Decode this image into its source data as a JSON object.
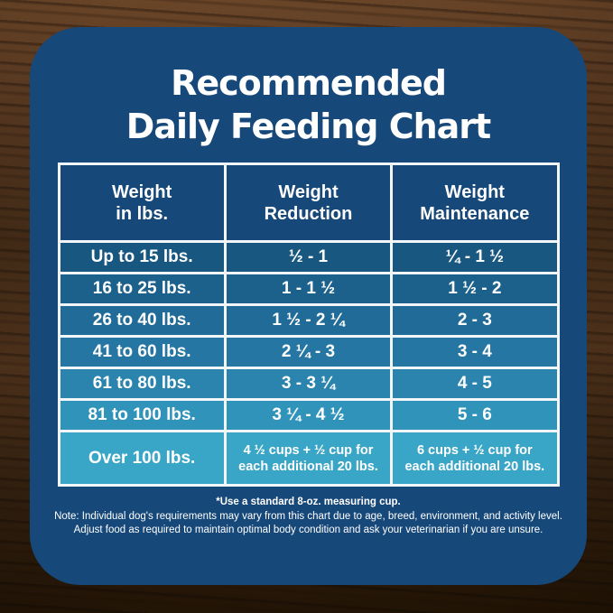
{
  "header": {
    "title_line1": "Recommended",
    "title_line2": "Daily Feeding Chart"
  },
  "table": {
    "columns": [
      {
        "line1": "Weight",
        "line2": "in lbs."
      },
      {
        "line1": "Weight",
        "line2": "Reduction"
      },
      {
        "line1": "Weight",
        "line2": "Maintenance"
      }
    ],
    "rows": [
      {
        "weight": "Up to 15 lbs.",
        "reduction": "½ - 1",
        "maintenance": "¼ - 1 ½"
      },
      {
        "weight": "16 to 25 lbs.",
        "reduction": "1 - 1 ½",
        "maintenance": "1 ½ - 2"
      },
      {
        "weight": "26 to 40 lbs.",
        "reduction": "1 ½ - 2 ¼",
        "maintenance": "2 - 3"
      },
      {
        "weight": "41 to 60 lbs.",
        "reduction": "2 ¼ - 3",
        "maintenance": "3 - 4"
      },
      {
        "weight": "61 to 80 lbs.",
        "reduction": "3 - 3 ¼",
        "maintenance": "4 - 5"
      },
      {
        "weight": "81 to 100 lbs.",
        "reduction": "3 ¼ - 4 ½",
        "maintenance": "5 - 6"
      },
      {
        "weight": "Over 100 lbs.",
        "reduction": [
          "4 ½ cups + ½ cup for",
          "each additional 20 lbs."
        ],
        "maintenance": [
          "6 cups + ½ cup for",
          "each additional 20 lbs."
        ]
      }
    ],
    "row_colors": [
      "#175780",
      "#1b618c",
      "#206b97",
      "#2576a2",
      "#2a84ae",
      "#3093ba",
      "#3aa6c7"
    ]
  },
  "footnotes": {
    "measuring_cup": "*Use a standard 8-oz. measuring cup.",
    "note_line1": "Note: Individual dog's requirements may vary from this chart due to age, breed, environment, and activity level.",
    "note_line2": "Adjust food as required to maintain optimal body condition and ask your veterinarian if you are unsure."
  },
  "colors": {
    "card_background": "#17487a",
    "table_border": "#f2f6f8",
    "text": "#ffffff",
    "wood_base": "#3b2413"
  },
  "chart_data": {
    "type": "table",
    "title": "Recommended Daily Feeding Chart",
    "columns": [
      "Weight in lbs.",
      "Weight Reduction",
      "Weight Maintenance"
    ],
    "rows": [
      [
        "Up to 15 lbs.",
        "½ - 1",
        "¼ - 1 ½"
      ],
      [
        "16 to 25 lbs.",
        "1 - 1 ½",
        "1 ½ - 2"
      ],
      [
        "26 to 40 lbs.",
        "1 ½ - 2 ¼",
        "2 - 3"
      ],
      [
        "41 to 60 lbs.",
        "2 ¼ - 3",
        "3 - 4"
      ],
      [
        "61 to 80 lbs.",
        "3 - 3 ¼",
        "4 - 5"
      ],
      [
        "81 to 100 lbs.",
        "3 ¼ - 4 ½",
        "5 - 6"
      ],
      [
        "Over 100 lbs.",
        "4 ½ cups + ½ cup for each additional 20 lbs.",
        "6 cups + ½ cup for each additional 20 lbs."
      ]
    ],
    "footnote": "*Use a standard 8-oz. measuring cup."
  }
}
